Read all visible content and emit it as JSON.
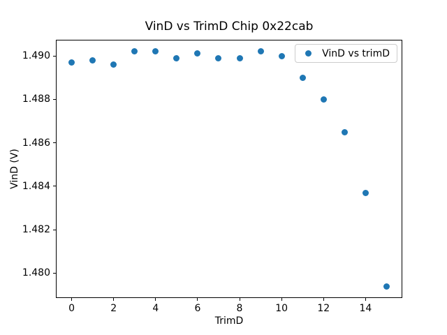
{
  "chart_data": {
    "type": "scatter",
    "title": "VinD vs TrimD Chip 0x22cab",
    "xlabel": "TrimD",
    "ylabel": "VinD (V)",
    "series": [
      {
        "name": "VinD vs trimD",
        "x": [
          0,
          1,
          2,
          3,
          4,
          5,
          6,
          7,
          8,
          9,
          10,
          11,
          12,
          13,
          14,
          15
        ],
        "y": [
          1.4897,
          1.4898,
          1.4896,
          1.4902,
          1.4902,
          1.4899,
          1.4901,
          1.4899,
          1.4899,
          1.4902,
          1.49,
          1.489,
          1.488,
          1.4865,
          1.4837,
          1.4794
        ],
        "color": "#1f77b4"
      }
    ],
    "xlim": [
      -0.75,
      15.75
    ],
    "ylim": [
      1.47886,
      1.49074
    ],
    "xticks": [
      0,
      2,
      4,
      6,
      8,
      10,
      12,
      14
    ],
    "xtick_labels": [
      "0",
      "2",
      "4",
      "6",
      "8",
      "10",
      "12",
      "14"
    ],
    "yticks": [
      1.48,
      1.482,
      1.484,
      1.486,
      1.488,
      1.49
    ],
    "ytick_labels": [
      "1.480",
      "1.482",
      "1.484",
      "1.486",
      "1.488",
      "1.490"
    ],
    "grid": false,
    "legend": {
      "position": "upper right",
      "entries": [
        "VinD vs trimD"
      ]
    }
  },
  "figure": {
    "background": "#ffffff",
    "spine_color": "#000000",
    "marker_color": "#1f77b4",
    "legend_border_color": "#cccccc",
    "text_color": "#000000"
  }
}
